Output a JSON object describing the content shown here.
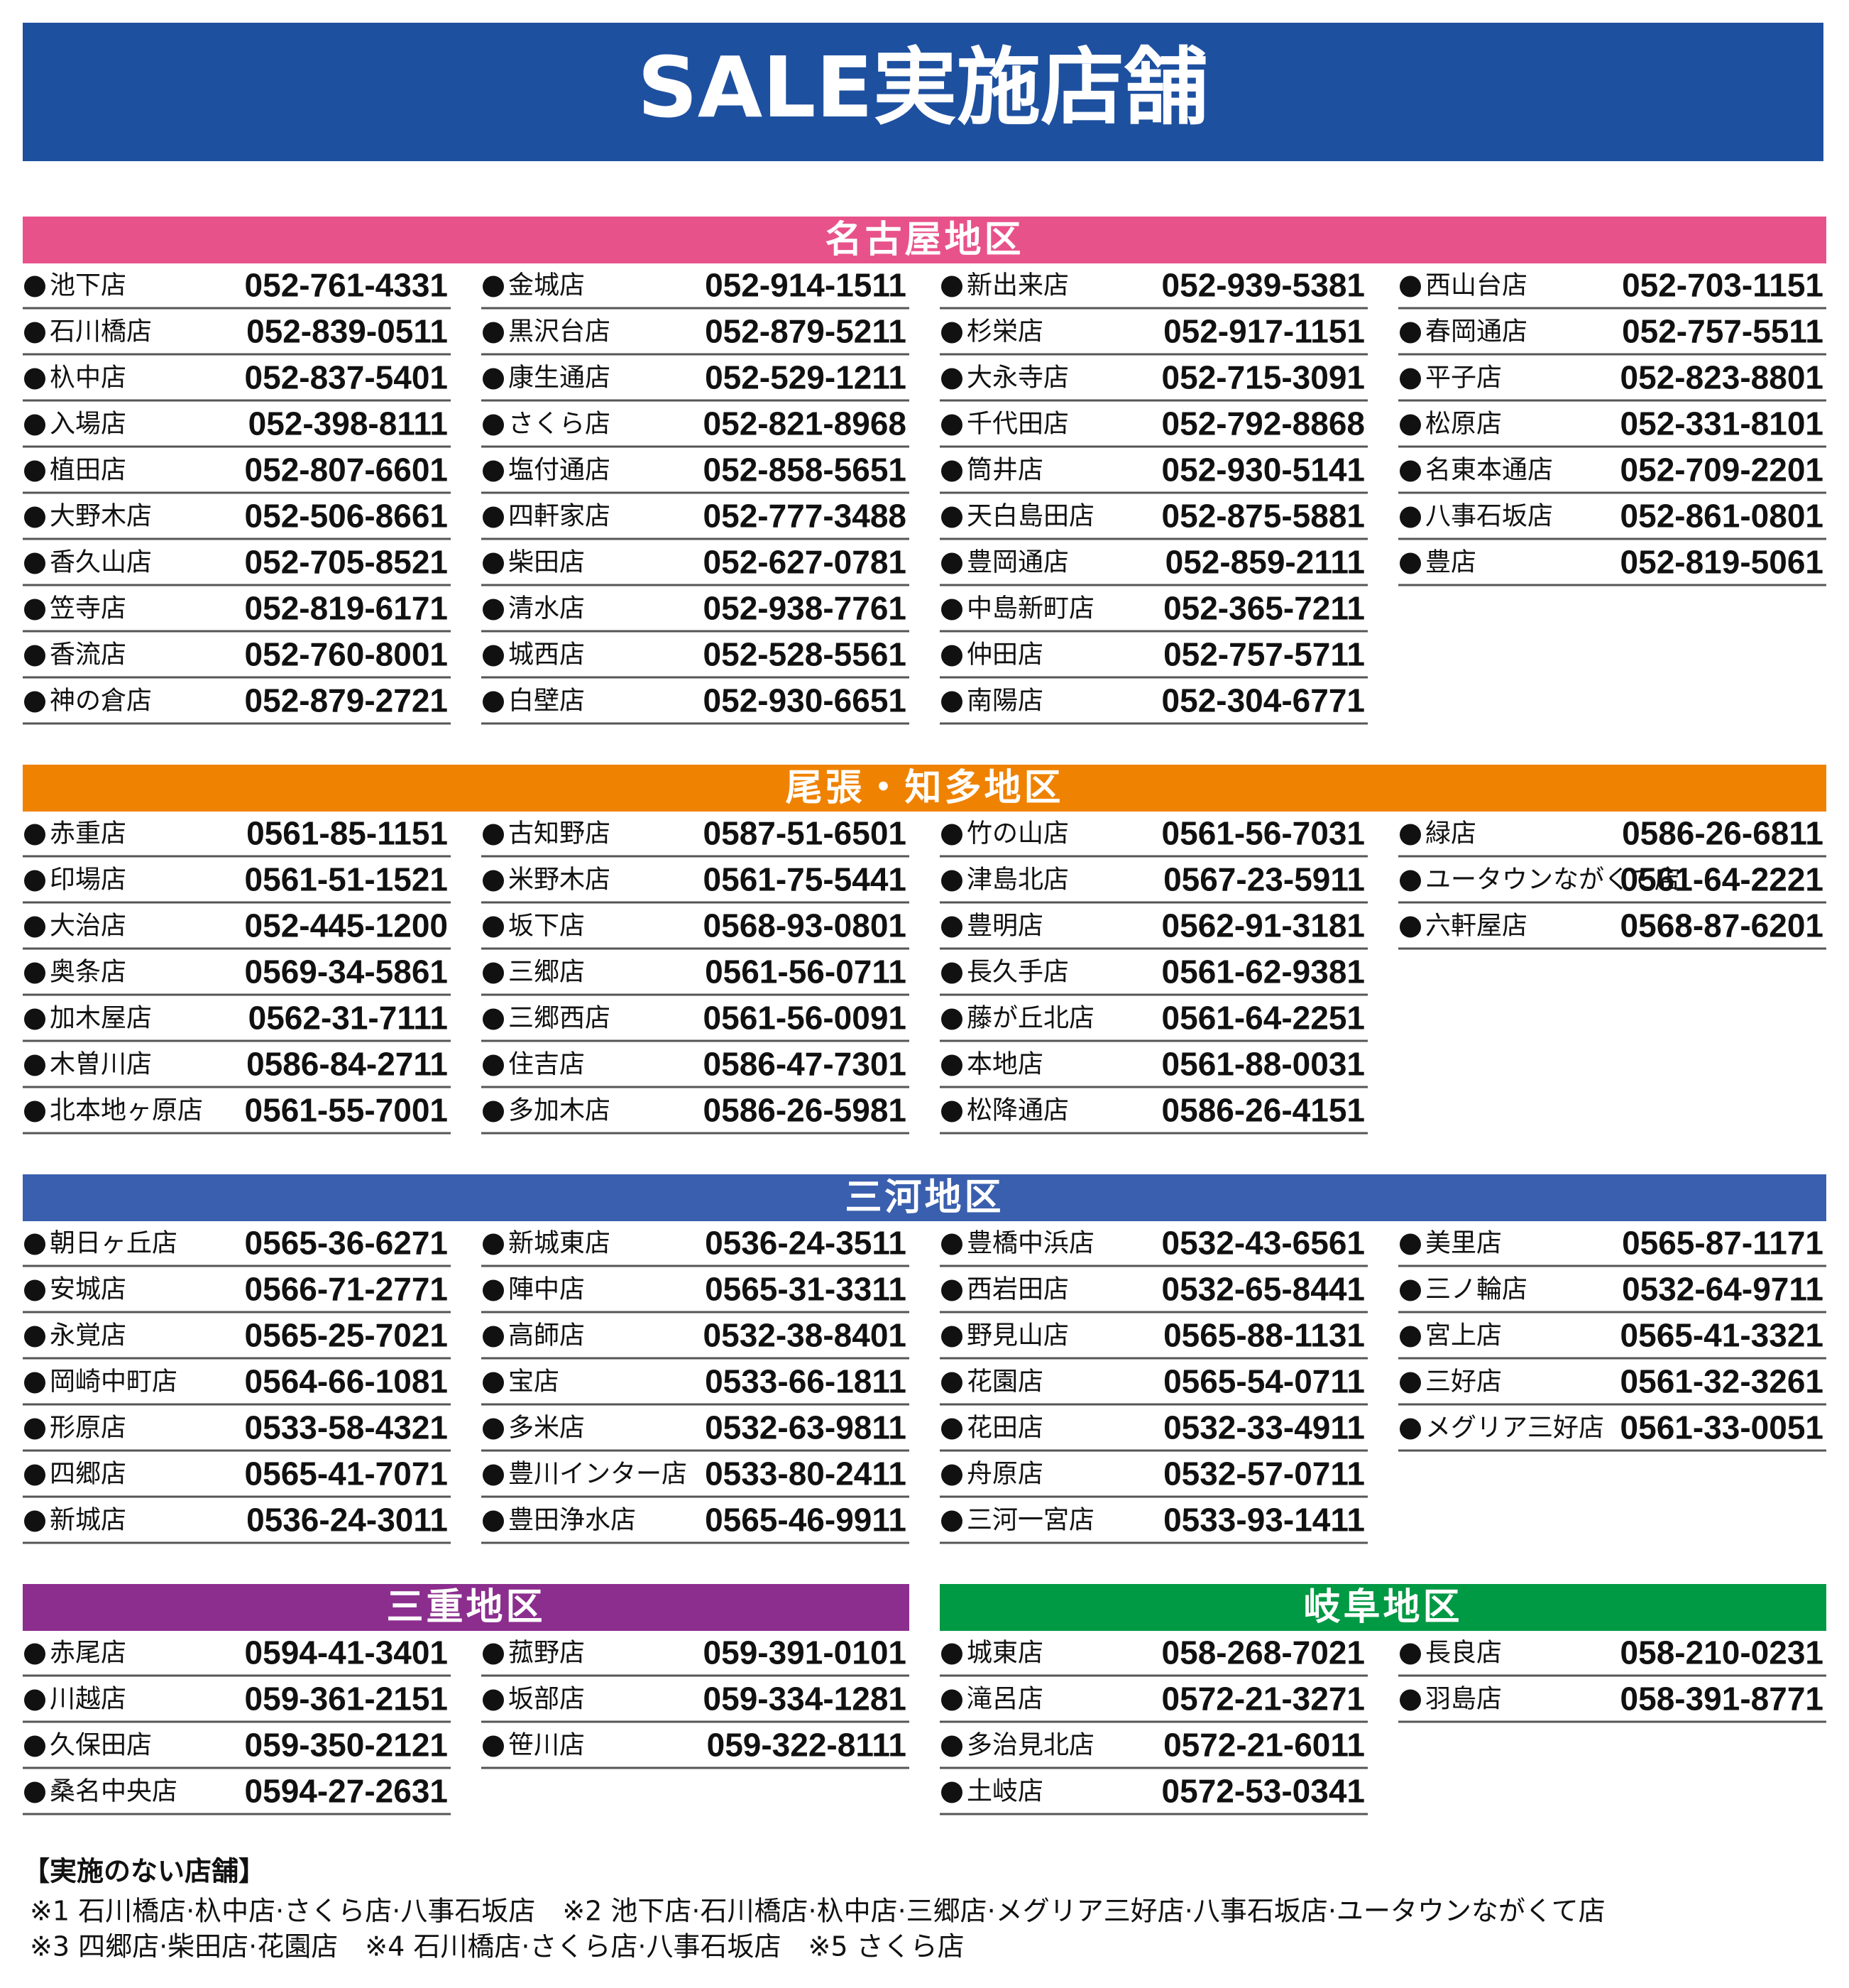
{
  "title": "SALE実施店舗",
  "sections": [
    {
      "title": "名古屋地区",
      "color": "#e8528a",
      "columns": [
        [
          {
            "name": "池下店",
            "phone": "052-761-4331"
          },
          {
            "name": "石川橋店",
            "phone": "052-839-0511"
          },
          {
            "name": "杁中店",
            "phone": "052-837-5401"
          },
          {
            "name": "入場店",
            "phone": "052-398-8111"
          },
          {
            "name": "植田店",
            "phone": "052-807-6601"
          },
          {
            "name": "大野木店",
            "phone": "052-506-8661"
          },
          {
            "name": "香久山店",
            "phone": "052-705-8521"
          },
          {
            "name": "笠寺店",
            "phone": "052-819-6171"
          },
          {
            "name": "香流店",
            "phone": "052-760-8001"
          },
          {
            "name": "神の倉店",
            "phone": "052-879-2721"
          }
        ],
        [
          {
            "name": "金城店",
            "phone": "052-914-1511"
          },
          {
            "name": "黒沢台店",
            "phone": "052-879-5211"
          },
          {
            "name": "康生通店",
            "phone": "052-529-1211"
          },
          {
            "name": "さくら店",
            "phone": "052-821-8968"
          },
          {
            "name": "塩付通店",
            "phone": "052-858-5651"
          },
          {
            "name": "四軒家店",
            "phone": "052-777-3488"
          },
          {
            "name": "柴田店",
            "phone": "052-627-0781"
          },
          {
            "name": "清水店",
            "phone": "052-938-7761"
          },
          {
            "name": "城西店",
            "phone": "052-528-5561"
          },
          {
            "name": "白壁店",
            "phone": "052-930-6651"
          }
        ],
        [
          {
            "name": "新出来店",
            "phone": "052-939-5381"
          },
          {
            "name": "杉栄店",
            "phone": "052-917-1151"
          },
          {
            "name": "大永寺店",
            "phone": "052-715-3091"
          },
          {
            "name": "千代田店",
            "phone": "052-792-8868"
          },
          {
            "name": "筒井店",
            "phone": "052-930-5141"
          },
          {
            "name": "天白島田店",
            "phone": "052-875-5881"
          },
          {
            "name": "豊岡通店",
            "phone": "052-859-2111"
          },
          {
            "name": "中島新町店",
            "phone": "052-365-7211"
          },
          {
            "name": "仲田店",
            "phone": "052-757-5711"
          },
          {
            "name": "南陽店",
            "phone": "052-304-6771"
          }
        ],
        [
          {
            "name": "西山台店",
            "phone": "052-703-1151"
          },
          {
            "name": "春岡通店",
            "phone": "052-757-5511"
          },
          {
            "name": "平子店",
            "phone": "052-823-8801"
          },
          {
            "name": "松原店",
            "phone": "052-331-8101"
          },
          {
            "name": "名東本通店",
            "phone": "052-709-2201"
          },
          {
            "name": "八事石坂店",
            "phone": "052-861-0801"
          },
          {
            "name": "豊店",
            "phone": "052-819-5061"
          }
        ]
      ]
    },
    {
      "title": "尾張・知多地区",
      "color": "#ef8200",
      "columns": [
        [
          {
            "name": "赤重店",
            "phone": "0561-85-1151"
          },
          {
            "name": "印場店",
            "phone": "0561-51-1521"
          },
          {
            "name": "大治店",
            "phone": "052-445-1200"
          },
          {
            "name": "奥条店",
            "phone": "0569-34-5861"
          },
          {
            "name": "加木屋店",
            "phone": "0562-31-7111"
          },
          {
            "name": "木曽川店",
            "phone": "0586-84-2711"
          },
          {
            "name": "北本地ヶ原店",
            "phone": "0561-55-7001"
          }
        ],
        [
          {
            "name": "古知野店",
            "phone": "0587-51-6501"
          },
          {
            "name": "米野木店",
            "phone": "0561-75-5441"
          },
          {
            "name": "坂下店",
            "phone": "0568-93-0801"
          },
          {
            "name": "三郷店",
            "phone": "0561-56-0711"
          },
          {
            "name": "三郷西店",
            "phone": "0561-56-0091"
          },
          {
            "name": "住吉店",
            "phone": "0586-47-7301"
          },
          {
            "name": "多加木店",
            "phone": "0586-26-5981"
          }
        ],
        [
          {
            "name": "竹の山店",
            "phone": "0561-56-7031"
          },
          {
            "name": "津島北店",
            "phone": "0567-23-5911"
          },
          {
            "name": "豊明店",
            "phone": "0562-91-3181"
          },
          {
            "name": "長久手店",
            "phone": "0561-62-9381"
          },
          {
            "name": "藤が丘北店",
            "phone": "0561-64-2251"
          },
          {
            "name": "本地店",
            "phone": "0561-88-0031"
          },
          {
            "name": "松降通店",
            "phone": "0586-26-4151"
          }
        ],
        [
          {
            "name": "緑店",
            "phone": "0586-26-6811"
          },
          {
            "name": "ユータウンながくて店",
            "phone": "0561-64-2221"
          },
          {
            "name": "六軒屋店",
            "phone": "0568-87-6201"
          }
        ]
      ]
    },
    {
      "title": "三河地区",
      "color": "#3a5fae",
      "columns": [
        [
          {
            "name": "朝日ヶ丘店",
            "phone": "0565-36-6271"
          },
          {
            "name": "安城店",
            "phone": "0566-71-2771"
          },
          {
            "name": "永覚店",
            "phone": "0565-25-7021"
          },
          {
            "name": "岡崎中町店",
            "phone": "0564-66-1081"
          },
          {
            "name": "形原店",
            "phone": "0533-58-4321"
          },
          {
            "name": "四郷店",
            "phone": "0565-41-7071"
          },
          {
            "name": "新城店",
            "phone": "0536-24-3011"
          }
        ],
        [
          {
            "name": "新城東店",
            "phone": "0536-24-3511"
          },
          {
            "name": "陣中店",
            "phone": "0565-31-3311"
          },
          {
            "name": "高師店",
            "phone": "0532-38-8401"
          },
          {
            "name": "宝店",
            "phone": "0533-66-1811"
          },
          {
            "name": "多米店",
            "phone": "0532-63-9811"
          },
          {
            "name": "豊川インター店",
            "phone": "0533-80-2411"
          },
          {
            "name": "豊田浄水店",
            "phone": "0565-46-9911"
          }
        ],
        [
          {
            "name": "豊橋中浜店",
            "phone": "0532-43-6561"
          },
          {
            "name": "西岩田店",
            "phone": "0532-65-8441"
          },
          {
            "name": "野見山店",
            "phone": "0565-88-1131"
          },
          {
            "name": "花園店",
            "phone": "0565-54-0711"
          },
          {
            "name": "花田店",
            "phone": "0532-33-4911"
          },
          {
            "name": "舟原店",
            "phone": "0532-57-0711"
          },
          {
            "name": "三河一宮店",
            "phone": "0533-93-1411"
          }
        ],
        [
          {
            "name": "美里店",
            "phone": "0565-87-1171"
          },
          {
            "name": "三ノ輪店",
            "phone": "0532-64-9711"
          },
          {
            "name": "宮上店",
            "phone": "0565-41-3321"
          },
          {
            "name": "三好店",
            "phone": "0561-32-3261"
          },
          {
            "name": "メグリア三好店",
            "phone": "0561-33-0051"
          }
        ]
      ]
    },
    {
      "title": "三重地区",
      "color": "#8b2e8e",
      "columns": [
        [
          {
            "name": "赤尾店",
            "phone": "0594-41-3401"
          },
          {
            "name": "川越店",
            "phone": "059-361-2151"
          },
          {
            "name": "久保田店",
            "phone": "059-350-2121"
          },
          {
            "name": "桑名中央店",
            "phone": "0594-27-2631"
          }
        ],
        [
          {
            "name": "菰野店",
            "phone": "059-391-0101"
          },
          {
            "name": "坂部店",
            "phone": "059-334-1281"
          },
          {
            "name": "笹川店",
            "phone": "059-322-8111"
          }
        ]
      ]
    },
    {
      "title": "岐阜地区",
      "color": "#009944",
      "columns": [
        [
          {
            "name": "城東店",
            "phone": "058-268-7021"
          },
          {
            "name": "滝呂店",
            "phone": "0572-21-3271"
          },
          {
            "name": "多治見北店",
            "phone": "0572-21-6011"
          },
          {
            "name": "土岐店",
            "phone": "0572-53-0341"
          }
        ],
        [
          {
            "name": "長良店",
            "phone": "058-210-0231"
          },
          {
            "name": "羽島店",
            "phone": "058-391-8771"
          }
        ]
      ]
    }
  ],
  "notes": {
    "title": "【実施のない店舗】",
    "lines": [
      "※1 石川橋店·杁中店·さくら店·八事石坂店　※2 池下店·石川橋店·杁中店·三郷店·メグリア三好店·八事石坂店·ユータウンながくて店",
      "※3 四郷店·柴田店·花園店　※4 石川橋店·さくら店·八事石坂店　※5 さくら店"
    ]
  }
}
